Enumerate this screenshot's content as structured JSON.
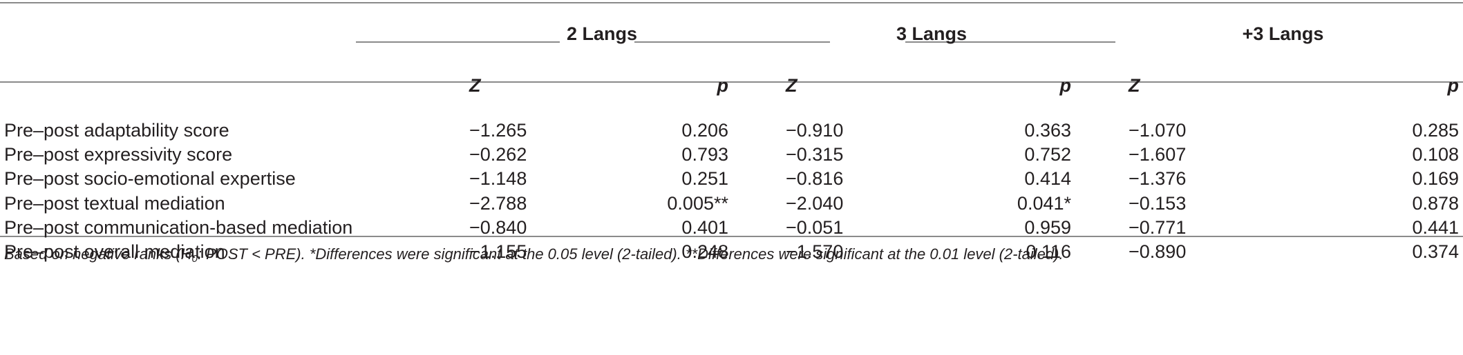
{
  "groups": [
    "2 Langs",
    "3 Langs",
    "+3 Langs"
  ],
  "sub_headers": {
    "z": "Z",
    "p": "p"
  },
  "rows": [
    {
      "label": "Pre–post adaptability score",
      "z1": "−1.265",
      "p1": "0.206",
      "z2": "−0.910",
      "p2": "0.363",
      "z3": "−1.070",
      "p3": "0.285"
    },
    {
      "label": "Pre–post expressivity score",
      "z1": "−0.262",
      "p1": "0.793",
      "z2": "−0.315",
      "p2": "0.752",
      "z3": "−1.607",
      "p3": "0.108"
    },
    {
      "label": "Pre–post socio-emotional expertise",
      "z1": "−1.148",
      "p1": "0.251",
      "z2": "−0.816",
      "p2": "0.414",
      "z3": "−1.376",
      "p3": "0.169"
    },
    {
      "label": "Pre–post textual mediation",
      "z1": "−2.788",
      "p1": "0.005**",
      "z2": "−2.040",
      "p2": "0.041*",
      "z3": "−0.153",
      "p3": "0.878"
    },
    {
      "label": "Pre–post communication-based mediation",
      "z1": "−0.840",
      "p1": "0.401",
      "z2": "−0.051",
      "p2": "0.959",
      "z3": "−0.771",
      "p3": "0.441"
    },
    {
      "label": "Pre–post overall mediation",
      "z1": "−1.155",
      "p1": "0.248",
      "z2": "−1.570",
      "p2": "0.116",
      "z3": "−0.890",
      "p3": "0.374"
    }
  ],
  "footnote": {
    "part1": "Based on negative ranks (H",
    "sub": "0",
    "part2": ": POST < PRE). *Differences were significant at the 0.05 level (2-tailed). **Differences were significant at the 0.01 level (2-tailed)."
  }
}
